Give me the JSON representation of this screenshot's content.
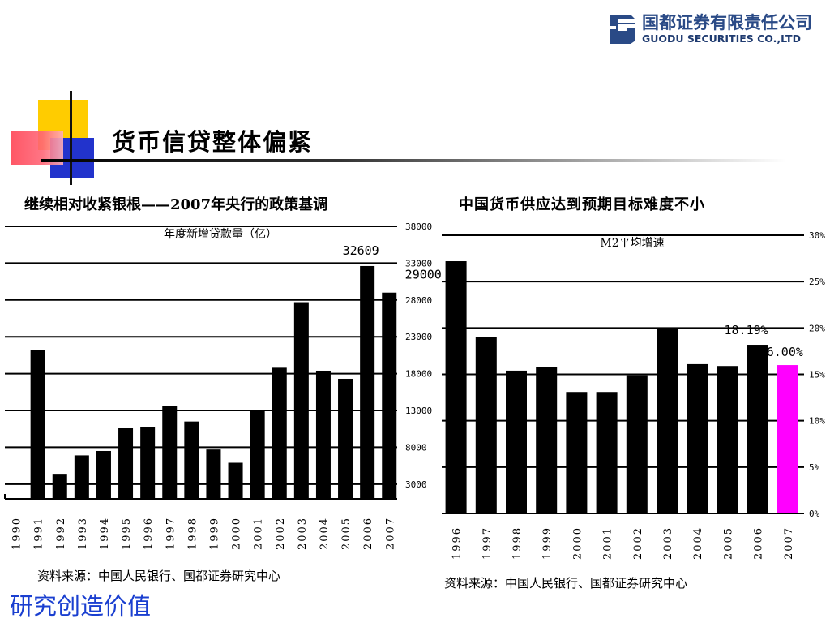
{
  "header": {
    "logo_cn": "国都证券有限责任公司",
    "logo_en": "GUODU SECURITIES CO.,LTD",
    "page_title": "货币信贷整体偏紧",
    "left_heading": "继续相对收紧银根——2007年央行的政策基调",
    "right_heading": "中国货币供应达到预期目标难度不小"
  },
  "footer": {
    "left_source": "资料来源：中国人民银行、国都证券研究中心",
    "right_source": "资料来源：中国人民银行、国都证券研究中心",
    "tagline": "研究创造价值"
  },
  "colors": {
    "bar": "#000000",
    "highlight_bar": "#ff00ff",
    "tagline": "#1a3fd0",
    "logo": "#2a4a86"
  },
  "chart_data": [
    {
      "type": "bar",
      "title": "年度新增贷款量（亿）",
      "categories": [
        "1990",
        "1991",
        "1992",
        "1993",
        "1994",
        "1995",
        "1996",
        "1997",
        "1998",
        "1999",
        "2000",
        "2001",
        "2002",
        "2003",
        "2004",
        "2005",
        "2006",
        "2007"
      ],
      "values": [
        0,
        21200,
        4400,
        6900,
        7500,
        10600,
        10800,
        13600,
        11500,
        7700,
        5900,
        13000,
        18800,
        27700,
        18400,
        17300,
        32609,
        29000
      ],
      "data_labels": [
        {
          "index": 16,
          "text": "32609"
        },
        {
          "index": 17,
          "text": "29000"
        }
      ],
      "y_ticks": [
        "38000",
        "33000",
        "28000",
        "23000",
        "18000",
        "13000",
        "8000",
        "3000"
      ],
      "y_tick_values": [
        38000,
        33000,
        28000,
        23000,
        18000,
        13000,
        8000,
        3000
      ],
      "ylim": [
        1000,
        38000
      ],
      "y_axis_side": "right",
      "grid": true
    },
    {
      "type": "bar",
      "title": "M2平均增速",
      "categories": [
        "1996",
        "1997",
        "1998",
        "1999",
        "2000",
        "2001",
        "2002",
        "2003",
        "2004",
        "2005",
        "2006",
        "2007"
      ],
      "values": [
        27.2,
        19.0,
        15.4,
        15.8,
        13.1,
        13.1,
        14.9,
        20.0,
        16.1,
        15.9,
        18.19,
        16.0
      ],
      "highlight_index": 11,
      "data_labels": [
        {
          "index": 10,
          "text": "18.19%"
        },
        {
          "index": 11,
          "text": "16.00%"
        }
      ],
      "y_ticks": [
        "30%",
        "25%",
        "20%",
        "15%",
        "10%",
        "5%",
        "0%"
      ],
      "y_tick_values": [
        30,
        25,
        20,
        15,
        10,
        5,
        0
      ],
      "ylim": [
        0,
        30
      ],
      "y_axis_side": "right",
      "grid": true
    }
  ]
}
